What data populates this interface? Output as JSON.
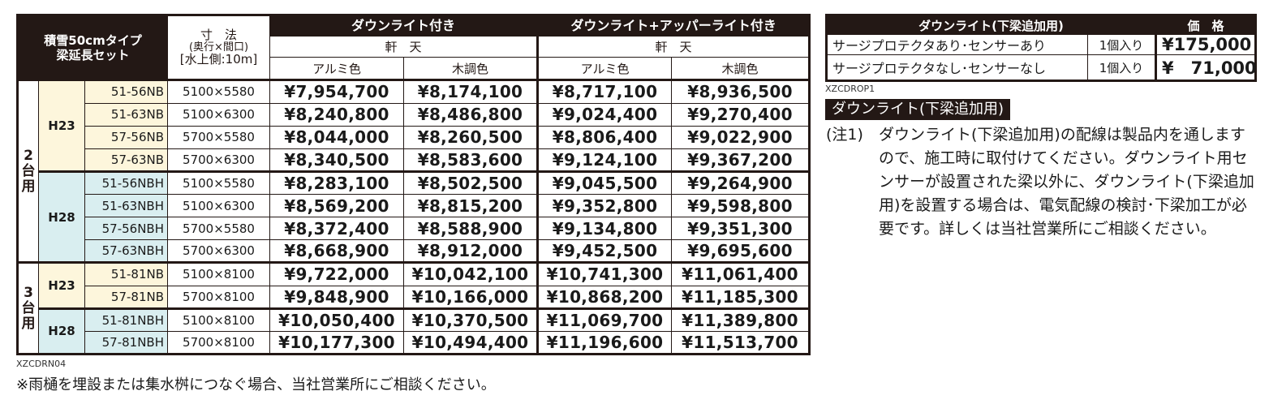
{
  "main_table": {
    "title_line1": "積雪50cmタイプ",
    "title_line2": "梁延長セット",
    "size_header_line1": "寸　法",
    "size_header_line2": "(奥行×間口)",
    "size_header_line3": "[水上側:10m]",
    "groups": [
      {
        "label": "ダウンライト付き",
        "sub": "軒　天",
        "cols": [
          "アルミ色",
          "木調色"
        ]
      },
      {
        "label": "ダウンライト+アッパーライト付き",
        "sub": "軒　天",
        "cols": [
          "アルミ色",
          "木調色"
        ]
      }
    ],
    "sections": [
      {
        "units_label": "2台用",
        "height_groups": [
          {
            "height": "H23",
            "rows": [
              {
                "code": "51-56NB",
                "size": "5100×5580",
                "prices": [
                  "¥7,954,700",
                  "¥8,174,100",
                  "¥8,717,100",
                  "¥8,936,500"
                ]
              },
              {
                "code": "51-63NB",
                "size": "5100×6300",
                "prices": [
                  "¥8,240,800",
                  "¥8,486,800",
                  "¥9,024,400",
                  "¥9,270,400"
                ]
              },
              {
                "code": "57-56NB",
                "size": "5700×5580",
                "prices": [
                  "¥8,044,000",
                  "¥8,260,500",
                  "¥8,806,400",
                  "¥9,022,900"
                ]
              },
              {
                "code": "57-63NB",
                "size": "5700×6300",
                "prices": [
                  "¥8,340,500",
                  "¥8,583,600",
                  "¥9,124,100",
                  "¥9,367,200"
                ]
              }
            ]
          },
          {
            "height": "H28",
            "rows": [
              {
                "code": "51-56NBH",
                "size": "5100×5580",
                "prices": [
                  "¥8,283,100",
                  "¥8,502,500",
                  "¥9,045,500",
                  "¥9,264,900"
                ]
              },
              {
                "code": "51-63NBH",
                "size": "5100×6300",
                "prices": [
                  "¥8,569,200",
                  "¥8,815,200",
                  "¥9,352,800",
                  "¥9,598,800"
                ]
              },
              {
                "code": "57-56NBH",
                "size": "5700×5580",
                "prices": [
                  "¥8,372,400",
                  "¥8,588,900",
                  "¥9,134,800",
                  "¥9,351,300"
                ]
              },
              {
                "code": "57-63NBH",
                "size": "5700×6300",
                "prices": [
                  "¥8,668,900",
                  "¥8,912,000",
                  "¥9,452,500",
                  "¥9,695,600"
                ]
              }
            ]
          }
        ]
      },
      {
        "units_label": "3台用",
        "height_groups": [
          {
            "height": "H23",
            "rows": [
              {
                "code": "51-81NB",
                "size": "5100×8100",
                "prices": [
                  "¥9,722,000",
                  "¥10,042,100",
                  "¥10,741,300",
                  "¥11,061,400"
                ]
              },
              {
                "code": "57-81NB",
                "size": "5700×8100",
                "prices": [
                  "¥9,848,900",
                  "¥10,166,000",
                  "¥10,868,200",
                  "¥11,185,300"
                ]
              }
            ]
          },
          {
            "height": "H28",
            "rows": [
              {
                "code": "51-81NBH",
                "size": "5100×8100",
                "prices": [
                  "¥10,050,400",
                  "¥10,370,500",
                  "¥11,069,700",
                  "¥11,389,800"
                ]
              },
              {
                "code": "57-81NBH",
                "size": "5700×8100",
                "prices": [
                  "¥10,177,300",
                  "¥10,494,400",
                  "¥11,196,600",
                  "¥11,513,700"
                ]
              }
            ]
          }
        ]
      }
    ],
    "code_id": "XZCDRN04"
  },
  "option_table": {
    "header_name": "ダウンライト(下梁追加用)",
    "header_price": "価　格",
    "rows": [
      {
        "name": "サージプロテクタあり･センサーあり",
        "qty": "1個入り",
        "price": "¥175,000"
      },
      {
        "name": "サージプロテクタなし･センサーなし",
        "qty": "1個入り",
        "price": "¥　71,000"
      }
    ],
    "code_id": "XZCDROP1"
  },
  "note": {
    "section_title": "ダウンライト(下梁追加用)",
    "label": "(注1)",
    "text": "ダウンライト(下梁追加用)の配線は製品内を通しますので、施工時に取付けてください。ダウンライト用センサーが設置された梁以外に、ダウンライト(下梁追加用)を設置する場合は、電気配線の検討･下梁加工が必要です。詳しくは当社営業所にご相談ください。"
  },
  "footnote": "※雨樋を埋設または集水桝につなぐ場合、当社営業所にご相談ください。"
}
